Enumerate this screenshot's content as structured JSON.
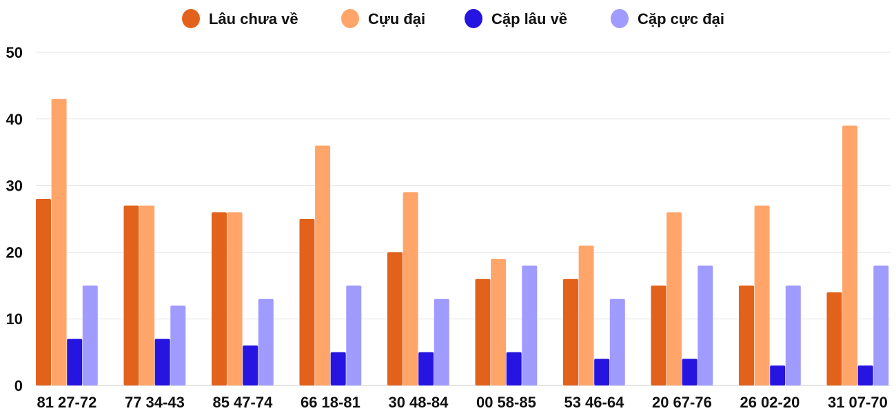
{
  "chart_data": {
    "type": "bar",
    "title": "",
    "xlabel": "",
    "ylabel": "",
    "ylim": [
      0,
      50
    ],
    "yticks": [
      0,
      10,
      20,
      30,
      40,
      50
    ],
    "grid": true,
    "legend_placement": "top-center",
    "categories": [
      "81 27-72",
      "77 34-43",
      "85 47-74",
      "66 18-81",
      "30 48-84",
      "00 58-85",
      "53 46-64",
      "20 67-76",
      "26 02-20",
      "31 07-70"
    ],
    "series": [
      {
        "name": "Lâu chưa về",
        "color": "#E2621B",
        "values": [
          28,
          27,
          26,
          25,
          20,
          16,
          16,
          15,
          15,
          14
        ]
      },
      {
        "name": "Cựu đại",
        "color": "#FFA56A",
        "values": [
          43,
          27,
          26,
          36,
          29,
          19,
          21,
          26,
          27,
          39
        ]
      },
      {
        "name": "Cặp lâu về",
        "color": "#2614E0",
        "values": [
          7,
          7,
          6,
          5,
          5,
          5,
          4,
          4,
          3,
          3
        ]
      },
      {
        "name": "Cặp cực đại",
        "color": "#A09BFF",
        "values": [
          15,
          12,
          13,
          15,
          13,
          18,
          13,
          18,
          15,
          18
        ]
      }
    ]
  }
}
